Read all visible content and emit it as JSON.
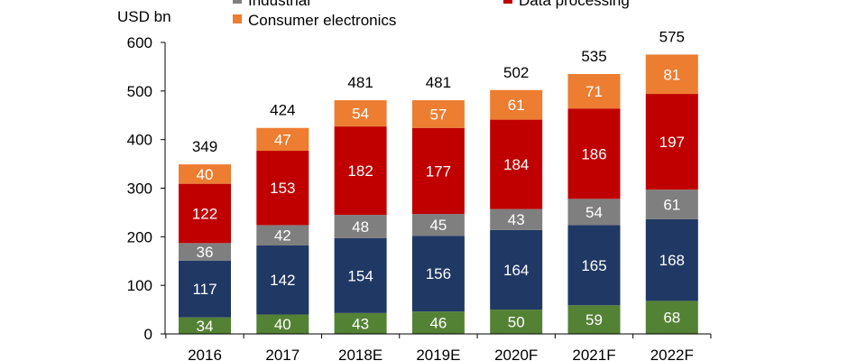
{
  "chart_data": {
    "type": "bar",
    "stacked": true,
    "ylabel": "USD bn",
    "ylim": [
      0,
      600
    ],
    "yticks": [
      0,
      100,
      200,
      300,
      400,
      500,
      600
    ],
    "grid": false,
    "legend_placement": "top",
    "categories": [
      "2016",
      "2017",
      "2018E",
      "2019E",
      "2020F",
      "2021F",
      "2022F"
    ],
    "series": [
      {
        "values": [
          34,
          40,
          43,
          46,
          50,
          59,
          68
        ],
        "color": "#548235"
      },
      {
        "values": [
          117,
          142,
          154,
          156,
          164,
          165,
          168
        ],
        "color": "#203864"
      },
      {
        "name": "Industrial",
        "values": [
          36,
          42,
          48,
          45,
          43,
          54,
          61
        ],
        "color": "#7f7f7f"
      },
      {
        "name": "Data processing",
        "values": [
          122,
          153,
          182,
          177,
          184,
          186,
          197
        ],
        "color": "#c00000"
      },
      {
        "name": "Consumer electronics",
        "values": [
          40,
          47,
          54,
          57,
          61,
          71,
          81
        ],
        "color": "#ed7d31"
      }
    ],
    "totals": [
      349,
      424,
      481,
      481,
      502,
      535,
      575
    ]
  }
}
